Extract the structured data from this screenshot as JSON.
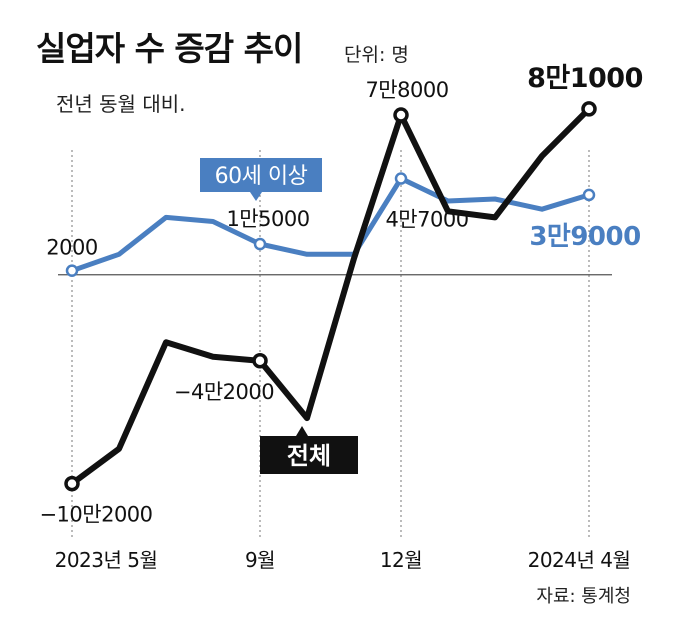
{
  "chart_data": {
    "type": "line",
    "title": "실업자 수 증감 추이",
    "unit_label": "단위: 명",
    "subtitle": "전년 동월 대비.",
    "source": "자료: 통계청",
    "x": [
      "2023-05",
      "2023-06",
      "2023-07",
      "2023-08",
      "2023-09",
      "2023-10",
      "2023-11",
      "2023-12",
      "2024-01",
      "2024-02",
      "2024-03",
      "2024-04"
    ],
    "x_tick_labels": [
      {
        "index": 0,
        "label": "2023년 5월"
      },
      {
        "index": 4,
        "label": "9월"
      },
      {
        "index": 7,
        "label": "12월"
      },
      {
        "index": 11,
        "label": "2024년 4월"
      }
    ],
    "ylim": [
      -110000,
      100000
    ],
    "zero_line": true,
    "series": [
      {
        "name": "60세 이상",
        "color": "#4a7fc1",
        "values": [
          2000,
          10000,
          28000,
          26000,
          15000,
          10000,
          10000,
          47000,
          36000,
          37000,
          32000,
          39000
        ],
        "markers": [
          0,
          4,
          7,
          11
        ],
        "labels": [
          {
            "index": 0,
            "text": "2000"
          },
          {
            "index": 4,
            "text": "1만5000"
          },
          {
            "index": 7,
            "text": "4만7000"
          },
          {
            "index": 11,
            "text": "3만9000"
          }
        ]
      },
      {
        "name": "전체",
        "color": "#111111",
        "values": [
          -102000,
          -85000,
          -33000,
          -40000,
          -42000,
          -70000,
          8000,
          78000,
          31000,
          28000,
          58000,
          81000
        ],
        "markers": [
          0,
          4,
          7,
          11
        ],
        "labels": [
          {
            "index": 0,
            "text": "−10만2000"
          },
          {
            "index": 4,
            "text": "−4만2000"
          },
          {
            "index": 7,
            "text": "7만8000"
          },
          {
            "index": 11,
            "text": "8만1000"
          }
        ]
      }
    ]
  }
}
